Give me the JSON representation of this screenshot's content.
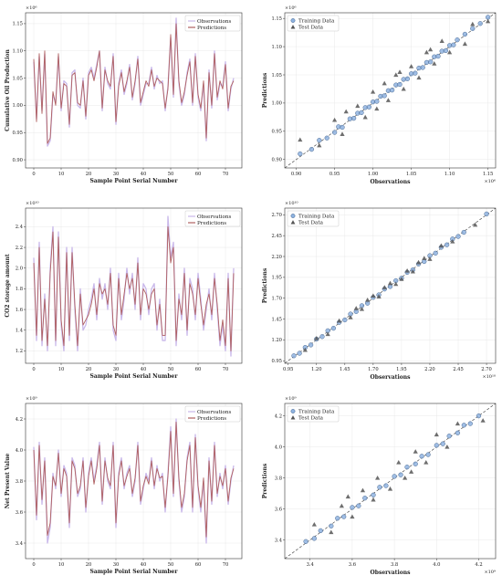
{
  "chart_data": [
    {
      "type": "line",
      "xlabel": "Sample Point Serial Number",
      "ylabel": "Cumulative Oil Production",
      "y_exponent": "×10⁶",
      "xlim": [
        -3,
        76
      ],
      "ylim": [
        0.885,
        1.17
      ],
      "xticks": [
        0,
        10,
        20,
        30,
        40,
        50,
        60,
        70
      ],
      "yticks": [
        0.9,
        0.95,
        1.0,
        1.05,
        1.1,
        1.15
      ],
      "ytick_labels": [
        "0.90",
        "0.95",
        "1.00",
        "1.05",
        "1.10",
        "1.15"
      ],
      "legend": "top-right",
      "series": [
        {
          "name": "Observations",
          "color": "#c9b8ea",
          "values": [
            1.08,
            0.975,
            1.09,
            0.99,
            1.095,
            0.925,
            0.935,
            1.02,
            1.005,
            1.09,
            0.99,
            1.045,
            1.04,
            0.96,
            1.06,
            1.065,
            1.0,
            0.995,
            1.05,
            0.975,
            1.06,
            1.07,
            1.05,
            1.075,
            1.1,
            0.99,
            1.07,
            1.04,
            1.03,
            1.095,
            0.965,
            1.04,
            1.065,
            1.02,
            1.04,
            1.075,
            1.01,
            1.04,
            1.09,
            1.0,
            1.02,
            1.04,
            1.04,
            1.07,
            1.03,
            1.055,
            1.04,
            1.045,
            0.99,
            1.035,
            1.125,
            1.015,
            1.16,
            1.04,
            1.0,
            1.02,
            1.06,
            1.085,
            1.0,
            1.095,
            1.015,
            0.99,
            1.04,
            0.935,
            1.065,
            0.995,
            1.1,
            1.01,
            1.04,
            1.035,
            1.08,
            0.99,
            1.03,
            1.05
          ]
        },
        {
          "name": "Predictions",
          "color": "#b06060",
          "values": [
            1.085,
            0.97,
            1.095,
            0.985,
            1.1,
            0.93,
            0.94,
            1.025,
            1.0,
            1.095,
            0.995,
            1.04,
            1.035,
            0.965,
            1.055,
            1.06,
            1.005,
            1.0,
            1.045,
            0.98,
            1.055,
            1.065,
            1.045,
            1.07,
            1.1,
            0.995,
            1.065,
            1.045,
            1.035,
            1.09,
            0.97,
            1.035,
            1.06,
            1.025,
            1.045,
            1.07,
            1.015,
            1.045,
            1.085,
            1.005,
            1.025,
            1.045,
            1.035,
            1.065,
            1.035,
            1.05,
            1.045,
            1.04,
            0.995,
            1.03,
            1.13,
            1.02,
            1.15,
            1.045,
            1.005,
            1.025,
            1.055,
            1.08,
            1.005,
            1.09,
            1.02,
            0.995,
            1.045,
            0.94,
            1.06,
            1.0,
            1.095,
            1.015,
            1.045,
            1.03,
            1.075,
            0.995,
            1.035,
            1.045
          ]
        }
      ]
    },
    {
      "type": "scatter",
      "xlabel": "Observations",
      "ylabel": "Predictions",
      "x_exponent": "×10⁶",
      "y_exponent": "×10⁶",
      "xlim": [
        0.885,
        1.16
      ],
      "ylim": [
        0.885,
        1.16
      ],
      "xticks": [
        0.9,
        0.95,
        1.0,
        1.05,
        1.1,
        1.15
      ],
      "xtick_labels": [
        "0.90",
        "0.95",
        "1.00",
        "1.05",
        "1.10",
        "1.15"
      ],
      "yticks": [
        0.9,
        0.95,
        1.0,
        1.05,
        1.1,
        1.15
      ],
      "ytick_labels": [
        "0.90",
        "0.95",
        "1.00",
        "1.05",
        "1.10",
        "1.15"
      ],
      "legend": "top-left",
      "reference_line": "y = x",
      "series": [
        {
          "name": "Training Data",
          "marker": "circle",
          "color": "#8fb3e0",
          "x": [
            0.905,
            0.92,
            0.93,
            0.94,
            0.95,
            0.955,
            0.96,
            0.97,
            0.975,
            0.98,
            0.985,
            0.99,
            0.995,
            1.0,
            1.005,
            1.01,
            1.015,
            1.02,
            1.025,
            1.03,
            1.035,
            1.04,
            1.045,
            1.05,
            1.055,
            1.06,
            1.065,
            1.07,
            1.075,
            1.08,
            1.085,
            1.09,
            1.095,
            1.1,
            1.105,
            1.11,
            1.12,
            1.13,
            1.14,
            1.15
          ],
          "y": [
            0.91,
            0.918,
            0.934,
            0.938,
            0.948,
            0.958,
            0.957,
            0.972,
            0.973,
            0.982,
            0.983,
            0.992,
            0.993,
            1.002,
            1.003,
            1.012,
            1.013,
            1.022,
            1.023,
            1.032,
            1.033,
            1.042,
            1.043,
            1.052,
            1.053,
            1.062,
            1.063,
            1.072,
            1.073,
            1.082,
            1.083,
            1.092,
            1.093,
            1.102,
            1.103,
            1.112,
            1.122,
            1.132,
            1.141,
            1.152
          ]
        },
        {
          "name": "Test Data",
          "marker": "triangle",
          "color": "#555555",
          "x": [
            0.905,
            0.93,
            0.95,
            0.96,
            0.98,
            0.99,
            1.0,
            1.005,
            1.015,
            1.02,
            1.03,
            1.04,
            1.05,
            1.06,
            1.07,
            1.08,
            1.09,
            1.1,
            1.12,
            1.13,
            1.15,
            0.965,
            1.035,
            1.075
          ],
          "y": [
            0.935,
            0.925,
            0.97,
            0.945,
            0.995,
            0.975,
            1.02,
            0.99,
            1.035,
            1.005,
            1.05,
            1.025,
            1.065,
            1.045,
            1.09,
            1.07,
            1.11,
            1.09,
            1.105,
            1.14,
            1.145,
            0.985,
            1.055,
            1.095
          ]
        }
      ]
    },
    {
      "type": "line",
      "xlabel": "Sample Point Serial Number",
      "ylabel": "CO2 storage amount",
      "y_exponent": "×10¹⁰",
      "xlim": [
        -3,
        76
      ],
      "ylim": [
        1.08,
        2.58
      ],
      "xticks": [
        0,
        10,
        20,
        30,
        40,
        50,
        60,
        70
      ],
      "yticks": [
        1.2,
        1.4,
        1.6,
        1.8,
        2.0,
        2.2,
        2.4
      ],
      "ytick_labels": [
        "1.2",
        "1.4",
        "1.6",
        "1.8",
        "2.0",
        "2.2",
        "2.4"
      ],
      "legend": "top-right",
      "series": [
        {
          "name": "Observations",
          "color": "#c9b8ea",
          "values": [
            2.1,
            1.3,
            2.25,
            1.25,
            1.75,
            1.2,
            2.0,
            2.4,
            1.25,
            2.35,
            1.45,
            1.2,
            2.2,
            1.3,
            2.2,
            1.6,
            1.2,
            1.8,
            1.4,
            1.45,
            1.6,
            1.7,
            1.85,
            1.5,
            1.9,
            1.7,
            1.85,
            1.6,
            2.0,
            1.4,
            1.3,
            1.95,
            1.5,
            1.7,
            2.0,
            1.75,
            1.95,
            1.6,
            2.1,
            1.5,
            1.85,
            1.8,
            1.55,
            1.8,
            1.85,
            1.4,
            1.7,
            1.3,
            1.3,
            2.5,
            2.1,
            2.25,
            1.25,
            1.75,
            1.5,
            2.0,
            1.35,
            1.9,
            1.8,
            1.5,
            1.95,
            1.7,
            1.4,
            1.6,
            1.8,
            1.5,
            1.95,
            1.6,
            1.25,
            1.45,
            1.2,
            1.95,
            1.15,
            2.0
          ]
        },
        {
          "name": "Predictions",
          "color": "#b06060",
          "values": [
            2.05,
            1.35,
            2.2,
            1.3,
            1.7,
            1.25,
            1.95,
            2.35,
            1.3,
            2.3,
            1.5,
            1.25,
            2.15,
            1.35,
            2.15,
            1.65,
            1.25,
            1.75,
            1.45,
            1.5,
            1.55,
            1.65,
            1.8,
            1.55,
            1.85,
            1.75,
            1.8,
            1.65,
            1.95,
            1.45,
            1.35,
            1.9,
            1.55,
            1.75,
            1.95,
            1.8,
            1.9,
            1.65,
            2.05,
            1.55,
            1.8,
            1.75,
            1.6,
            1.75,
            1.8,
            1.45,
            1.65,
            1.35,
            1.35,
            2.4,
            2.05,
            2.2,
            1.3,
            1.7,
            1.55,
            1.95,
            1.4,
            1.85,
            1.75,
            1.55,
            1.9,
            1.65,
            1.45,
            1.65,
            1.75,
            1.55,
            1.9,
            1.65,
            1.3,
            1.5,
            1.25,
            1.9,
            1.2,
            1.95
          ]
        }
      ]
    },
    {
      "type": "scatter",
      "xlabel": "Observations",
      "ylabel": "Predictions",
      "x_exponent": "×10¹⁰",
      "y_exponent": "×10¹⁰",
      "xlim": [
        0.92,
        2.78
      ],
      "ylim": [
        0.92,
        2.78
      ],
      "xticks": [
        0.95,
        1.2,
        1.45,
        1.7,
        1.95,
        2.2,
        2.45,
        2.7
      ],
      "xtick_labels": [
        "0.95",
        "1.20",
        "1.45",
        "1.70",
        "1.95",
        "2.20",
        "2.45",
        "2.70"
      ],
      "yticks": [
        0.95,
        1.2,
        1.45,
        1.7,
        1.95,
        2.2,
        2.45,
        2.7
      ],
      "ytick_labels": [
        "0.95",
        "1.20",
        "1.45",
        "1.70",
        "1.95",
        "2.20",
        "2.45",
        "2.70"
      ],
      "legend": "top-left",
      "reference_line": "y = x",
      "series": [
        {
          "name": "Training Data",
          "marker": "circle",
          "color": "#8fb3e0",
          "x": [
            1.0,
            1.05,
            1.1,
            1.15,
            1.2,
            1.25,
            1.3,
            1.35,
            1.4,
            1.45,
            1.5,
            1.55,
            1.6,
            1.65,
            1.7,
            1.75,
            1.8,
            1.85,
            1.9,
            1.95,
            2.0,
            2.05,
            2.1,
            2.15,
            2.2,
            2.25,
            2.3,
            2.35,
            2.4,
            2.45,
            2.5,
            2.7
          ],
          "y": [
            1.01,
            1.04,
            1.11,
            1.14,
            1.21,
            1.24,
            1.31,
            1.34,
            1.41,
            1.44,
            1.51,
            1.54,
            1.61,
            1.64,
            1.71,
            1.74,
            1.81,
            1.84,
            1.91,
            1.94,
            2.01,
            2.04,
            2.11,
            2.14,
            2.21,
            2.24,
            2.31,
            2.34,
            2.41,
            2.44,
            2.49,
            2.71
          ]
        },
        {
          "name": "Test Data",
          "marker": "triangle",
          "color": "#555555",
          "x": [
            1.1,
            1.2,
            1.3,
            1.4,
            1.5,
            1.55,
            1.6,
            1.7,
            1.75,
            1.8,
            1.9,
            2.0,
            2.05,
            2.1,
            2.2,
            2.3,
            2.4,
            2.6,
            1.65,
            1.85,
            1.95,
            2.15
          ],
          "y": [
            1.08,
            1.22,
            1.27,
            1.43,
            1.47,
            1.58,
            1.57,
            1.73,
            1.72,
            1.83,
            1.87,
            2.03,
            2.02,
            2.13,
            2.17,
            2.33,
            2.38,
            2.58,
            1.68,
            1.88,
            1.93,
            2.18
          ]
        }
      ]
    },
    {
      "type": "line",
      "xlabel": "Sample Point Serial Number",
      "ylabel": "Net Present Value",
      "y_exponent": "×10⁹",
      "xlim": [
        -3,
        76
      ],
      "ylim": [
        3.3,
        4.3
      ],
      "xticks": [
        0,
        10,
        20,
        30,
        40,
        50,
        60,
        70
      ],
      "yticks": [
        3.4,
        3.6,
        3.8,
        4.0,
        4.2
      ],
      "ytick_labels": [
        "3.4",
        "3.6",
        "3.8",
        "4.0",
        "4.2"
      ],
      "legend": "top-right",
      "series": [
        {
          "name": "Observations",
          "color": "#c9b8ea",
          "values": [
            4.02,
            3.55,
            4.05,
            3.65,
            3.95,
            3.4,
            3.5,
            3.85,
            3.75,
            4.0,
            3.7,
            3.9,
            3.85,
            3.5,
            3.95,
            3.9,
            3.7,
            3.75,
            3.95,
            3.6,
            3.85,
            3.95,
            3.8,
            3.9,
            4.05,
            3.65,
            3.95,
            3.8,
            3.75,
            4.05,
            3.5,
            3.85,
            3.95,
            3.75,
            3.85,
            3.9,
            3.7,
            3.8,
            4.05,
            3.65,
            3.75,
            3.85,
            3.8,
            3.95,
            3.75,
            3.9,
            3.8,
            3.85,
            3.6,
            3.85,
            4.15,
            3.7,
            4.2,
            3.8,
            3.6,
            3.7,
            3.95,
            4.05,
            3.6,
            4.1,
            3.75,
            3.6,
            3.8,
            3.4,
            3.95,
            3.65,
            4.05,
            3.7,
            3.85,
            3.75,
            3.9,
            3.65,
            3.8,
            3.9
          ]
        },
        {
          "name": "Predictions",
          "color": "#b06060",
          "values": [
            4.0,
            3.58,
            4.03,
            3.68,
            3.93,
            3.45,
            3.53,
            3.83,
            3.77,
            3.98,
            3.72,
            3.88,
            3.83,
            3.53,
            3.93,
            3.88,
            3.72,
            3.77,
            3.93,
            3.63,
            3.83,
            3.93,
            3.78,
            3.88,
            4.03,
            3.67,
            3.93,
            3.82,
            3.77,
            4.03,
            3.53,
            3.83,
            3.93,
            3.77,
            3.83,
            3.88,
            3.72,
            3.82,
            4.03,
            3.67,
            3.77,
            3.83,
            3.78,
            3.93,
            3.77,
            3.88,
            3.82,
            3.83,
            3.63,
            3.83,
            4.12,
            3.72,
            4.18,
            3.82,
            3.63,
            3.72,
            3.93,
            4.03,
            3.63,
            4.08,
            3.77,
            3.63,
            3.82,
            3.44,
            3.93,
            3.67,
            4.03,
            3.72,
            3.83,
            3.77,
            3.88,
            3.67,
            3.82,
            3.88
          ]
        }
      ]
    },
    {
      "type": "scatter",
      "xlabel": "Observations",
      "ylabel": "Predictions",
      "x_exponent": "×10⁹",
      "y_exponent": "×10⁹",
      "xlim": [
        3.28,
        4.28
      ],
      "ylim": [
        3.28,
        4.28
      ],
      "xticks": [
        3.4,
        3.6,
        3.8,
        4.0,
        4.2
      ],
      "xtick_labels": [
        "3.4",
        "3.6",
        "3.8",
        "4.0",
        "4.2"
      ],
      "yticks": [
        3.4,
        3.6,
        3.8,
        4.0,
        4.2
      ],
      "ytick_labels": [
        "3.4",
        "3.6",
        "3.8",
        "4.0",
        "4.2"
      ],
      "legend": "top-left",
      "reference_line": "y = x",
      "series": [
        {
          "name": "Training Data",
          "marker": "circle",
          "color": "#8fb3e0",
          "x": [
            3.38,
            3.42,
            3.45,
            3.5,
            3.53,
            3.56,
            3.6,
            3.63,
            3.66,
            3.7,
            3.73,
            3.76,
            3.8,
            3.83,
            3.86,
            3.9,
            3.93,
            3.96,
            4.0,
            4.03,
            4.06,
            4.1,
            4.13,
            4.16,
            4.2
          ],
          "y": [
            3.39,
            3.41,
            3.46,
            3.49,
            3.54,
            3.55,
            3.61,
            3.62,
            3.67,
            3.69,
            3.74,
            3.75,
            3.81,
            3.82,
            3.87,
            3.89,
            3.94,
            3.95,
            4.01,
            4.02,
            4.07,
            4.09,
            4.14,
            4.15,
            4.2
          ]
        },
        {
          "name": "Test Data",
          "marker": "triangle",
          "color": "#555555",
          "x": [
            3.42,
            3.5,
            3.55,
            3.6,
            3.65,
            3.7,
            3.72,
            3.78,
            3.82,
            3.85,
            3.9,
            3.95,
            4.0,
            4.05,
            4.1,
            4.22,
            3.58,
            3.88
          ],
          "y": [
            3.5,
            3.45,
            3.62,
            3.55,
            3.72,
            3.66,
            3.8,
            3.73,
            3.9,
            3.8,
            3.97,
            3.9,
            4.08,
            4.0,
            4.15,
            4.17,
            3.68,
            3.84
          ]
        }
      ]
    }
  ]
}
